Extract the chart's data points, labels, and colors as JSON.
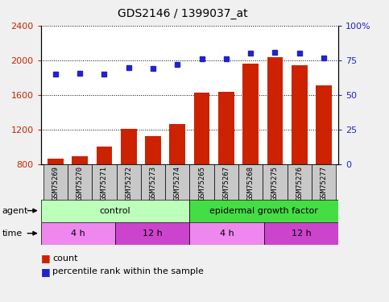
{
  "title": "GDS2146 / 1399037_at",
  "samples": [
    "GSM75269",
    "GSM75270",
    "GSM75271",
    "GSM75272",
    "GSM75273",
    "GSM75274",
    "GSM75265",
    "GSM75267",
    "GSM75268",
    "GSM75275",
    "GSM75276",
    "GSM75277"
  ],
  "counts": [
    870,
    895,
    1010,
    1210,
    1130,
    1265,
    1630,
    1640,
    1960,
    2040,
    1940,
    1710
  ],
  "percentile": [
    65,
    66,
    65,
    70,
    69,
    72,
    76,
    76,
    80,
    81,
    80,
    77
  ],
  "ylim_left": [
    800,
    2400
  ],
  "ylim_right": [
    0,
    100
  ],
  "yticks_left": [
    800,
    1200,
    1600,
    2000,
    2400
  ],
  "yticks_right": [
    0,
    25,
    50,
    75,
    100
  ],
  "bar_color": "#cc2200",
  "dot_color": "#2222cc",
  "fig_bg": "#f0f0f0",
  "plot_bg": "#ffffff",
  "sample_box_color": "#c8c8c8",
  "agent_groups": [
    {
      "label": "control",
      "start": 0,
      "end": 6,
      "color": "#bbffbb"
    },
    {
      "label": "epidermal growth factor",
      "start": 6,
      "end": 12,
      "color": "#44dd44"
    }
  ],
  "time_groups": [
    {
      "label": "4 h",
      "start": 0,
      "end": 3,
      "color": "#ee88ee"
    },
    {
      "label": "12 h",
      "start": 3,
      "end": 6,
      "color": "#cc44cc"
    },
    {
      "label": "4 h",
      "start": 6,
      "end": 9,
      "color": "#ee88ee"
    },
    {
      "label": "12 h",
      "start": 9,
      "end": 12,
      "color": "#cc44cc"
    }
  ],
  "legend_count_color": "#cc2200",
  "legend_dot_color": "#2222cc",
  "bar_bottom": 800
}
